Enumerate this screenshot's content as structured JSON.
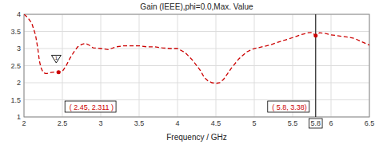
{
  "chart_data": {
    "type": "line",
    "title": "Gain (IEEE),phi=0.0,Max. Value",
    "x_label": "Frequency / GHz",
    "x": [
      2.0,
      2.05,
      2.1,
      2.15,
      2.18,
      2.2,
      2.22,
      2.25,
      2.28,
      2.3,
      2.35,
      2.4,
      2.45,
      2.5,
      2.55,
      2.6,
      2.65,
      2.7,
      2.75,
      2.8,
      2.85,
      2.9,
      3.0,
      3.1,
      3.2,
      3.3,
      3.4,
      3.5,
      3.6,
      3.7,
      3.8,
      3.9,
      4.0,
      4.1,
      4.2,
      4.3,
      4.35,
      4.4,
      4.45,
      4.5,
      4.55,
      4.6,
      4.7,
      4.8,
      4.9,
      5.0,
      5.1,
      5.2,
      5.3,
      5.4,
      5.45,
      5.5,
      5.55,
      5.6,
      5.65,
      5.7,
      5.75,
      5.8,
      5.85,
      5.9,
      5.95,
      6.0,
      6.1,
      6.2,
      6.3,
      6.4,
      6.5
    ],
    "values": [
      4.0,
      3.9,
      3.75,
      3.4,
      3.0,
      2.65,
      2.45,
      2.3,
      2.27,
      2.27,
      2.3,
      2.311,
      2.311,
      2.33,
      2.5,
      2.72,
      2.9,
      3.05,
      3.12,
      3.15,
      3.1,
      3.02,
      3.0,
      2.97,
      3.05,
      3.08,
      3.08,
      3.08,
      3.05,
      3.05,
      3.02,
      3.0,
      3.0,
      2.88,
      2.65,
      2.35,
      2.15,
      2.05,
      2.0,
      1.98,
      2.0,
      2.1,
      2.42,
      2.7,
      2.9,
      3.0,
      3.05,
      3.1,
      3.18,
      3.25,
      3.28,
      3.32,
      3.36,
      3.4,
      3.43,
      3.46,
      3.47,
      3.38,
      3.46,
      3.45,
      3.43,
      3.4,
      3.37,
      3.34,
      3.3,
      3.2,
      3.1
    ],
    "color": "#cc0000",
    "line_style": "dashed",
    "grid": true,
    "xlim": [
      2.0,
      6.5
    ],
    "ylim": [
      1.0,
      4.0
    ],
    "xticks": [
      2,
      2.5,
      3,
      3.5,
      4,
      4.5,
      5,
      5.5,
      5.8,
      6,
      6.5
    ],
    "yticks": [
      1,
      1.5,
      2,
      2.5,
      3,
      3.5,
      4
    ],
    "annotations": [
      {
        "text": " ( 2.45, 2.311 )",
        "x": 2.45,
        "y": 2.311
      },
      {
        "text": " ( 5.8, 3.38)",
        "x": 5.8,
        "y": 3.38
      }
    ],
    "vlines": [
      5.8
    ],
    "markers": [
      {
        "label": "1",
        "x": 2.42,
        "y": 2.72
      }
    ]
  }
}
